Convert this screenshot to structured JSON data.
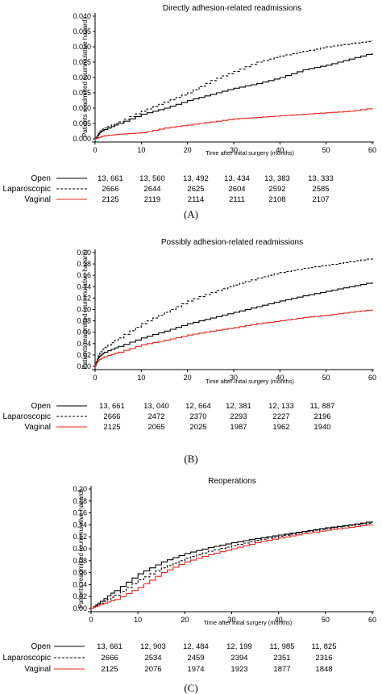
{
  "chart_data": [
    {
      "type": "line",
      "panel_label": "(A)",
      "title": "Directly adhesion-related readmissions",
      "xlabel": "Time after inital surgery (months)",
      "ylabel": "Patients readmitted (cummulative hazard)",
      "xlim": [
        0,
        60
      ],
      "ylim": [
        0,
        0.04
      ],
      "xticks": [
        "0",
        "10",
        "20",
        "30",
        "40",
        "50",
        "60"
      ],
      "yticks": [
        "0.000",
        "0.005",
        "0.010",
        "0.015",
        "0.020",
        "0.025",
        "0.030",
        "0.035",
        "0.040"
      ],
      "x": [
        0,
        1,
        2,
        5,
        10,
        15,
        20,
        25,
        30,
        35,
        40,
        45,
        50,
        55,
        60
      ],
      "series": [
        {
          "name": "Open",
          "style": "solid",
          "color": "#000000",
          "values": [
            0,
            0.002,
            0.003,
            0.005,
            0.008,
            0.01,
            0.0125,
            0.0145,
            0.0165,
            0.018,
            0.02,
            0.0225,
            0.024,
            0.026,
            0.028
          ]
        },
        {
          "name": "Laparoscopic",
          "style": "dashed",
          "color": "#000000",
          "values": [
            0,
            0.0025,
            0.0035,
            0.0055,
            0.009,
            0.012,
            0.015,
            0.019,
            0.022,
            0.025,
            0.027,
            0.0285,
            0.03,
            0.031,
            0.032
          ]
        },
        {
          "name": "Vaginal",
          "style": "solid",
          "color": "#e8241c",
          "values": [
            0,
            0.0005,
            0.001,
            0.0015,
            0.002,
            0.0035,
            0.0045,
            0.0055,
            0.0065,
            0.007,
            0.0075,
            0.008,
            0.0085,
            0.009,
            0.01
          ]
        }
      ],
      "risk_table": {
        "groups": [
          "Open",
          "Laparoscopic",
          "Vaginal"
        ],
        "rows": [
          [
            "13, 661",
            "13, 560",
            "13, 492",
            "13, 434",
            "13, 383",
            "13, 333"
          ],
          [
            "2666",
            "2644",
            "2625",
            "2604",
            "2592",
            "2585"
          ],
          [
            "2125",
            "2119",
            "2114",
            "2111",
            "2108",
            "2107"
          ]
        ]
      }
    },
    {
      "type": "line",
      "panel_label": "(B)",
      "title": "Possibly adhesion-related readmissions",
      "xlabel": "Time after inital surgery (months)",
      "ylabel": "Patients readmitted (cummulative hazard)",
      "xlim": [
        0,
        60
      ],
      "ylim": [
        0,
        0.2
      ],
      "xticks": [
        "0",
        "10",
        "20",
        "30",
        "40",
        "50",
        "60"
      ],
      "yticks": [
        "0.00",
        "0.02",
        "0.04",
        "0.06",
        "0.08",
        "0.10",
        "0.12",
        "0.14",
        "0.16",
        "0.18",
        "0.20"
      ],
      "x": [
        0,
        0.5,
        1,
        2,
        5,
        10,
        15,
        20,
        25,
        30,
        35,
        40,
        45,
        50,
        55,
        60
      ],
      "series": [
        {
          "name": "Open",
          "style": "solid",
          "color": "#000000",
          "values": [
            0,
            0.012,
            0.018,
            0.025,
            0.035,
            0.05,
            0.062,
            0.075,
            0.085,
            0.095,
            0.105,
            0.115,
            0.124,
            0.132,
            0.14,
            0.148
          ]
        },
        {
          "name": "Laparoscopic",
          "style": "dashed",
          "color": "#000000",
          "values": [
            0,
            0.015,
            0.023,
            0.033,
            0.05,
            0.075,
            0.095,
            0.115,
            0.13,
            0.143,
            0.155,
            0.165,
            0.172,
            0.178,
            0.184,
            0.19
          ]
        },
        {
          "name": "Vaginal",
          "style": "solid",
          "color": "#e8241c",
          "values": [
            0,
            0.008,
            0.012,
            0.017,
            0.025,
            0.038,
            0.046,
            0.055,
            0.062,
            0.068,
            0.075,
            0.08,
            0.086,
            0.09,
            0.095,
            0.1
          ]
        }
      ],
      "risk_table": {
        "groups": [
          "Open",
          "Laparoscopic",
          "Vaginal"
        ],
        "rows": [
          [
            "13, 661",
            "13, 040",
            "12, 664",
            "12, 381",
            "12, 133",
            "11, 887"
          ],
          [
            "2666",
            "2472",
            "2370",
            "2293",
            "2227",
            "2196"
          ],
          [
            "2125",
            "2065",
            "2025",
            "1987",
            "1962",
            "1940"
          ]
        ]
      }
    },
    {
      "type": "line",
      "panel_label": "(C)",
      "title": "Reoperations",
      "xlabel": "Time after inital surgery (months)",
      "ylabel": "Patients readmitted (cummulative hazard)",
      "xlim": [
        0,
        60
      ],
      "ylim": [
        0,
        0.2
      ],
      "xticks": [
        "0",
        "10",
        "20",
        "30",
        "40",
        "50",
        "60"
      ],
      "yticks": [
        "0.00",
        "0.02",
        "0.04",
        "0.06",
        "0.08",
        "0.10",
        "0.12",
        "0.14",
        "0.16",
        "0.18",
        "0.20"
      ],
      "x": [
        0,
        2,
        5,
        10,
        15,
        20,
        25,
        30,
        35,
        40,
        45,
        50,
        55,
        60
      ],
      "series": [
        {
          "name": "Open",
          "style": "solid",
          "color": "#000000",
          "values": [
            0,
            0.012,
            0.03,
            0.058,
            0.078,
            0.092,
            0.102,
            0.11,
            0.117,
            0.123,
            0.129,
            0.135,
            0.14,
            0.146
          ]
        },
        {
          "name": "Laparoscopic",
          "style": "dashed",
          "color": "#000000",
          "values": [
            0,
            0.009,
            0.022,
            0.048,
            0.068,
            0.084,
            0.096,
            0.105,
            0.114,
            0.121,
            0.128,
            0.134,
            0.139,
            0.144
          ]
        },
        {
          "name": "Vaginal",
          "style": "solid",
          "color": "#e8241c",
          "values": [
            0,
            0.007,
            0.015,
            0.035,
            0.06,
            0.078,
            0.09,
            0.1,
            0.11,
            0.118,
            0.125,
            0.131,
            0.136,
            0.141
          ]
        }
      ],
      "risk_table": {
        "groups": [
          "Open",
          "Laparoscopic",
          "Vaginal"
        ],
        "rows": [
          [
            "13, 661",
            "12, 903",
            "12, 484",
            "12, 199",
            "11, 985",
            "11, 825"
          ],
          [
            "2666",
            "2534",
            "2459",
            "2394",
            "2351",
            "2316"
          ],
          [
            "2125",
            "2076",
            "1974",
            "1923",
            "1877",
            "1848"
          ]
        ]
      }
    }
  ]
}
